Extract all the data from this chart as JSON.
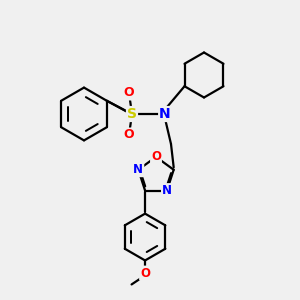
{
  "background_color": "#f0f0f0",
  "bond_color": "#000000",
  "atom_colors": {
    "N": "#0000ff",
    "O": "#ff0000",
    "S": "#cccc00",
    "C": "#000000"
  },
  "line_width": 1.6,
  "figsize": [
    3.0,
    3.0
  ],
  "dpi": 100
}
